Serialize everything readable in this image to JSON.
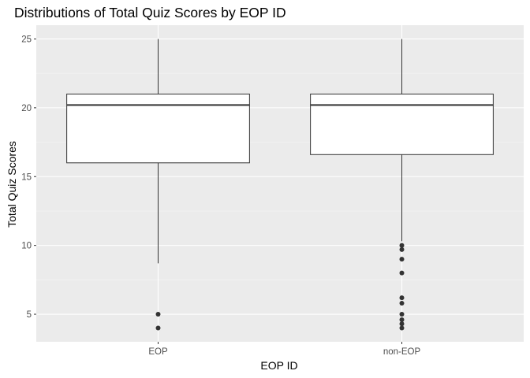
{
  "chart_data": {
    "type": "boxplot",
    "title": "Distributions of Total Quiz Scores by EOP ID",
    "xlabel": "EOP ID",
    "ylabel": "Total Quiz Scores",
    "categories": [
      "EOP",
      "non-EOP"
    ],
    "ylim": [
      3,
      26
    ],
    "yticks": [
      5,
      10,
      15,
      20,
      25
    ],
    "grid": true,
    "legend": "none",
    "boxes": [
      {
        "category": "EOP",
        "whisker_low": 8.7,
        "q1": 16,
        "median": 20.2,
        "q3": 21,
        "whisker_high": 25,
        "outliers": [
          5,
          4
        ]
      },
      {
        "category": "non-EOP",
        "whisker_low": 10.3,
        "q1": 16.6,
        "median": 20.2,
        "q3": 21,
        "whisker_high": 25,
        "outliers": [
          10,
          9.7,
          9,
          8,
          6.2,
          5.8,
          5,
          4.6,
          4.3,
          4
        ]
      }
    ],
    "colors": {
      "panel_background": "#ebebeb",
      "grid_major": "#ffffff",
      "grid_minor": "#f5f5f5",
      "box_fill": "#ffffff",
      "box_stroke": "#333333",
      "outlier": "#333333",
      "tick_text": "#4d4d4d"
    }
  }
}
